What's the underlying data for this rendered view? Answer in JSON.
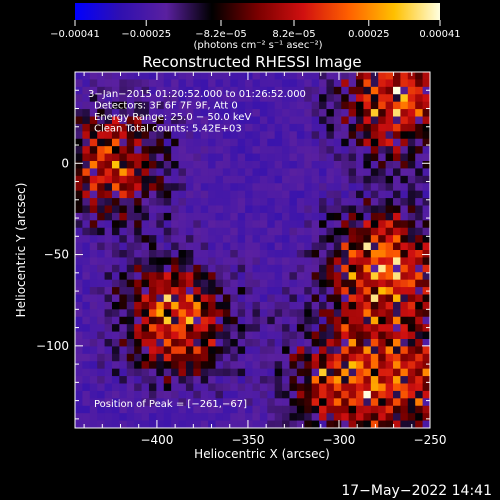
{
  "chart_data": {
    "type": "heatmap",
    "title": "Reconstructed RHESSI Image",
    "xlabel": "Heliocentric X (arcsec)",
    "ylabel": "Heliocentric Y (arcsec)",
    "xlim": [
      -445,
      -250
    ],
    "ylim": [
      -145,
      50
    ],
    "x_ticks": [
      -400,
      -350,
      -300,
      -250
    ],
    "x_tick_labels": [
      "−400",
      "−350",
      "−300",
      "−250"
    ],
    "y_ticks": [
      0,
      -50,
      -100
    ],
    "y_tick_labels": [
      "0",
      "−50",
      "−100"
    ],
    "colorbar": {
      "range": [
        -0.00041,
        0.00041
      ],
      "ticks": [
        -0.00041,
        -0.00025,
        -8.2e-05,
        8.2e-05,
        0.00025,
        0.00041
      ],
      "tick_labels": [
        "−0.00041",
        "−0.00025",
        "−8.2e−05",
        "8.2e−05",
        "0.00025",
        "0.00041"
      ],
      "unit_label": "(photons cm⁻² s⁻¹ asec⁻²)",
      "colors": [
        "#0000ff",
        "#3010b0",
        "#5a20a0",
        "#000000",
        "#7a0000",
        "#d01010",
        "#ff6000",
        "#ffc000",
        "#ffffe0"
      ]
    },
    "info_lines": [
      "3−Jan−2015 01:20:52.000 to 01:26:52.000",
      "Detectors: 3F 6F 7F 9F, Att 0",
      "Energy Range: 25.0 − 50.0 keV",
      "Clean    Total counts: 5.42E+03"
    ],
    "peak_text": "Position of Peak = [−261,−67]",
    "peak": {
      "x": -261,
      "y": -67
    },
    "sources": [
      {
        "x": -425,
        "y": 0,
        "level": 0.75
      },
      {
        "x": -270,
        "y": 35,
        "level": 0.85
      },
      {
        "x": -275,
        "y": -58,
        "level": 1.0
      },
      {
        "x": -390,
        "y": -85,
        "level": 0.9
      },
      {
        "x": -300,
        "y": -120,
        "level": 0.7
      },
      {
        "x": -262,
        "y": -120,
        "level": 0.6
      }
    ]
  },
  "footer": {
    "timestamp": "17−May−2022 14:41"
  }
}
